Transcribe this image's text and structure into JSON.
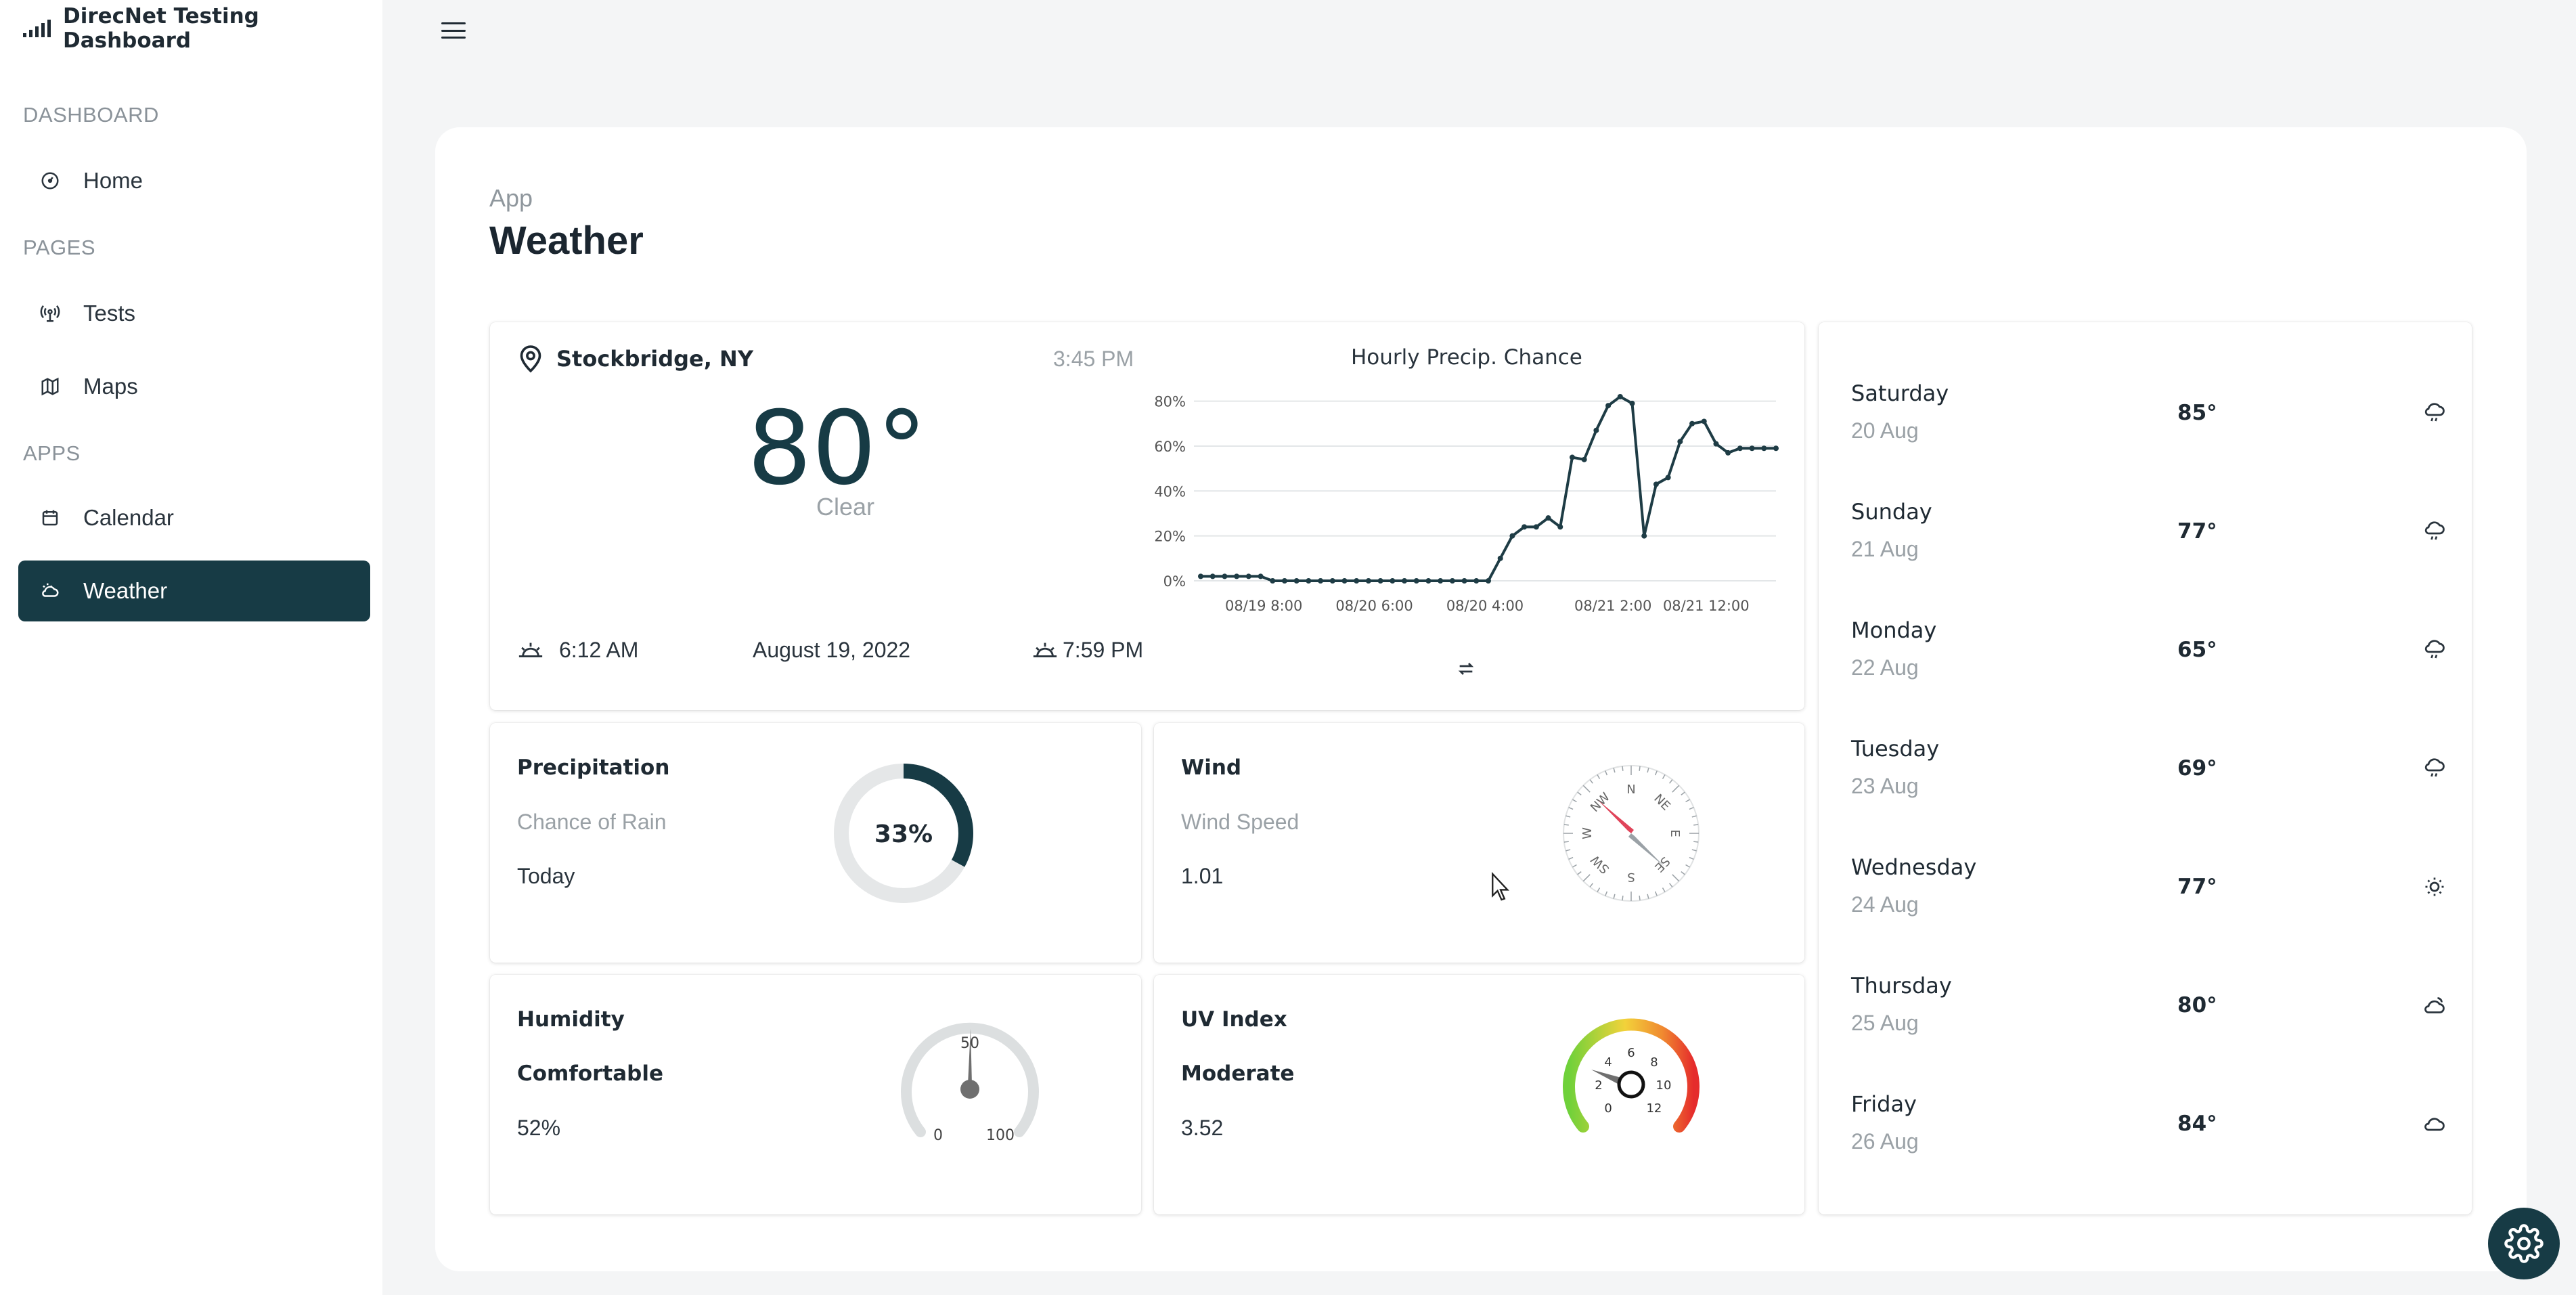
{
  "app": {
    "title": "DirecNet Testing Dashboard"
  },
  "sidebar": {
    "sections": [
      {
        "label": "DASHBOARD",
        "items": [
          {
            "label": "Home",
            "icon": "gauge-icon"
          }
        ]
      },
      {
        "label": "PAGES",
        "items": [
          {
            "label": "Tests",
            "icon": "antenna-icon"
          },
          {
            "label": "Maps",
            "icon": "map-icon"
          }
        ]
      },
      {
        "label": "APPS",
        "items": [
          {
            "label": "Calendar",
            "icon": "calendar-icon"
          },
          {
            "label": "Weather",
            "icon": "cloud-sun-icon",
            "active": true
          }
        ]
      }
    ]
  },
  "page": {
    "breadcrumb": "App",
    "title": "Weather"
  },
  "current": {
    "location": "Stockbridge, NY",
    "time": "3:45 PM",
    "temperature": "80°",
    "condition": "Clear",
    "sunrise": "6:12 AM",
    "date": "August 19, 2022",
    "sunset": "7:59 PM"
  },
  "chart_data": {
    "type": "line",
    "title": "Hourly Precip. Chance",
    "y_ticks": [
      "0%",
      "20%",
      "40%",
      "60%",
      "80%"
    ],
    "x_ticks": [
      "08/19 8:00",
      "08/20 6:00",
      "08/20 4:00",
      "08/21 2:00",
      "08/21 12:00"
    ],
    "ylim": [
      0,
      85
    ],
    "grid": true,
    "series": [
      {
        "values": [
          2,
          2,
          2,
          2,
          2,
          2,
          0,
          0,
          0,
          0,
          0,
          0,
          0,
          0,
          0,
          0,
          0,
          0,
          0,
          0,
          0,
          0,
          0,
          0,
          0,
          10,
          20,
          24,
          24,
          28,
          24,
          55,
          54,
          67,
          78,
          82,
          79,
          20,
          43,
          46,
          62,
          70,
          71,
          61,
          57,
          59,
          59,
          59,
          59
        ]
      }
    ]
  },
  "stats": {
    "precipitation": {
      "title": "Precipitation",
      "subtitle": "Chance of Rain",
      "value": "Today",
      "percent_label": "33%",
      "percent": 33
    },
    "wind": {
      "title": "Wind",
      "subtitle": "Wind Speed",
      "value": "1.01",
      "compass": [
        "N",
        "NE",
        "E",
        "SE",
        "S",
        "SW",
        "W",
        "NW"
      ]
    },
    "humidity": {
      "title": "Humidity",
      "subtitle": "Comfortable",
      "value": "52%",
      "tick_min": "0",
      "tick_mid": "50",
      "tick_max": "100"
    },
    "uv": {
      "title": "UV Index",
      "subtitle": "Moderate",
      "value": "3.52",
      "ticks": [
        "0",
        "2",
        "4",
        "6",
        "8",
        "10",
        "12"
      ]
    }
  },
  "forecast": [
    {
      "day": "Saturday",
      "date": "20 Aug",
      "temp": "85°",
      "icon": "cloud-rain-icon"
    },
    {
      "day": "Sunday",
      "date": "21 Aug",
      "temp": "77°",
      "icon": "cloud-rain-icon"
    },
    {
      "day": "Monday",
      "date": "22 Aug",
      "temp": "65°",
      "icon": "cloud-rain-icon"
    },
    {
      "day": "Tuesday",
      "date": "23 Aug",
      "temp": "69°",
      "icon": "cloud-rain-icon"
    },
    {
      "day": "Wednesday",
      "date": "24 Aug",
      "temp": "77°",
      "icon": "sun-icon"
    },
    {
      "day": "Thursday",
      "date": "25 Aug",
      "temp": "80°",
      "icon": "cloud-sun-icon"
    },
    {
      "day": "Friday",
      "date": "26 Aug",
      "temp": "84°",
      "icon": "cloud-icon"
    }
  ],
  "colors": {
    "primary": "#173b45",
    "chart_line": "#1e3c45",
    "muted": "#9aa1a6"
  }
}
